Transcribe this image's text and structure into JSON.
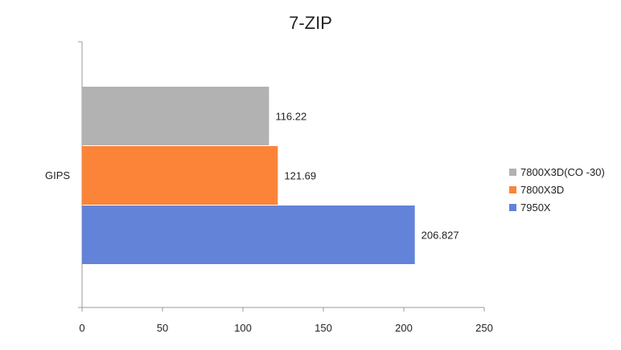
{
  "chart_data": {
    "type": "bar",
    "orientation": "horizontal",
    "title": "7-ZIP",
    "categories": [
      "GIPS"
    ],
    "series": [
      {
        "name": "7800X3D(CO -30)",
        "values": [
          116.22
        ],
        "label": "116.22",
        "color": "#b2b2b2"
      },
      {
        "name": "7800X3D",
        "values": [
          121.69
        ],
        "label": "121.69",
        "color": "#fb8439"
      },
      {
        "name": "7950X",
        "values": [
          206.827
        ],
        "label": "206.827",
        "color": "#6383d9"
      }
    ],
    "xlim": [
      0,
      250
    ],
    "x_ticks": [
      "0",
      "50",
      "100",
      "150",
      "200",
      "250"
    ],
    "xlabel": "",
    "ylabel": "",
    "grid": false,
    "legend_position": "right"
  }
}
